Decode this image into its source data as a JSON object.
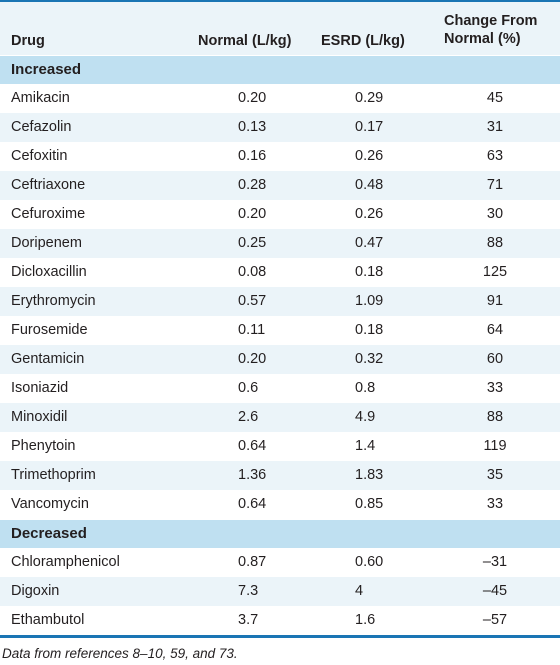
{
  "header": {
    "drug": "Drug",
    "normal": "Normal (L/kg)",
    "esrd": "ESRD (L/kg)",
    "change_line1": "Change From",
    "change_line2": "Normal (%)"
  },
  "sections": [
    {
      "title": "Increased",
      "rows": [
        {
          "drug": "Amikacin",
          "normal": "0.20",
          "esrd": "0.29",
          "change": "45"
        },
        {
          "drug": "Cefazolin",
          "normal": "0.13",
          "esrd": "0.17",
          "change": "31"
        },
        {
          "drug": "Cefoxitin",
          "normal": "0.16",
          "esrd": "0.26",
          "change": "63"
        },
        {
          "drug": "Ceftriaxone",
          "normal": "0.28",
          "esrd": "0.48",
          "change": "71"
        },
        {
          "drug": "Cefuroxime",
          "normal": "0.20",
          "esrd": "0.26",
          "change": "30"
        },
        {
          "drug": "Doripenem",
          "normal": "0.25",
          "esrd": "0.47",
          "change": "88"
        },
        {
          "drug": "Dicloxacillin",
          "normal": "0.08",
          "esrd": "0.18",
          "change": "125"
        },
        {
          "drug": "Erythromycin",
          "normal": "0.57",
          "esrd": "1.09",
          "change": "91"
        },
        {
          "drug": "Furosemide",
          "normal": "0.11",
          "esrd": "0.18",
          "change": "64"
        },
        {
          "drug": "Gentamicin",
          "normal": "0.20",
          "esrd": "0.32",
          "change": "60"
        },
        {
          "drug": "Isoniazid",
          "normal": "0.6",
          "esrd": "0.8",
          "change": "33"
        },
        {
          "drug": "Minoxidil",
          "normal": "2.6",
          "esrd": "4.9",
          "change": "88"
        },
        {
          "drug": "Phenytoin",
          "normal": "0.64",
          "esrd": "1.4",
          "change": "119"
        },
        {
          "drug": "Trimethoprim",
          "normal": "1.36",
          "esrd": "1.83",
          "change": "35"
        },
        {
          "drug": "Vancomycin",
          "normal": "0.64",
          "esrd": "0.85",
          "change": "33"
        }
      ]
    },
    {
      "title": "Decreased",
      "rows": [
        {
          "drug": "Chloramphenicol",
          "normal": "0.87",
          "esrd": "0.60",
          "change": "–31"
        },
        {
          "drug": "Digoxin",
          "normal": "7.3",
          "esrd": "4",
          "change": "–45"
        },
        {
          "drug": "Ethambutol",
          "normal": "3.7",
          "esrd": "1.6",
          "change": "–57"
        }
      ]
    }
  ],
  "footnote": "Data from references 8–10, 59, and 73.",
  "colors": {
    "rule": "#1a75b4",
    "header_bg": "#ebf4f9",
    "section_bg": "#bfe0f1",
    "stripe_bg": "#ebf4f9"
  }
}
